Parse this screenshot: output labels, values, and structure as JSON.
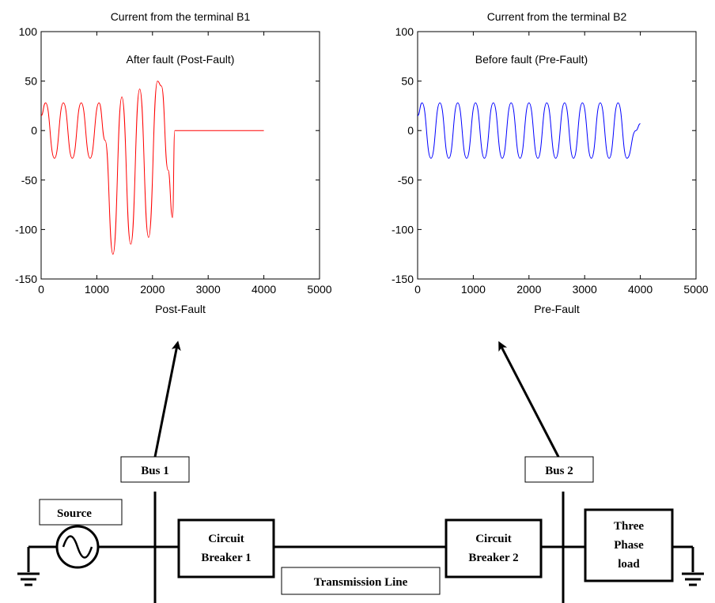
{
  "chart_data": [
    {
      "type": "line",
      "title": "Current from the terminal B1",
      "xlabel": "Post-Fault",
      "ylabel": "",
      "annotation": "After fault (Post-Fault)",
      "xlim": [
        0,
        5000
      ],
      "ylim": [
        -150,
        100
      ],
      "xticks": [
        "0",
        "1000",
        "2000",
        "3000",
        "4000",
        "5000"
      ],
      "yticks": [
        "100",
        "50",
        "0",
        "-50",
        "-100",
        "-150"
      ],
      "grid": false,
      "series": [
        {
          "color": "#ff0000",
          "x": [
            0,
            80,
            240,
            400,
            560,
            720,
            880,
            1040,
            1150,
            1290,
            1450,
            1610,
            1770,
            1930,
            2090,
            2160,
            2280,
            2360,
            2400,
            2500,
            3000,
            3500,
            4000
          ],
          "y": [
            15,
            28,
            -28,
            28,
            -28,
            28,
            -28,
            28,
            -10,
            -125,
            34,
            -115,
            42,
            -108,
            50,
            45,
            -40,
            -88,
            0,
            0,
            0,
            0,
            0
          ]
        }
      ]
    },
    {
      "type": "line",
      "title": "Current from the terminal B2",
      "xlabel": "Pre-Fault",
      "ylabel": "",
      "annotation": "Before fault (Pre-Fault)",
      "xlim": [
        0,
        5000
      ],
      "ylim": [
        -150,
        100
      ],
      "xticks": [
        "0",
        "1000",
        "2000",
        "3000",
        "4000",
        "5000"
      ],
      "yticks": [
        "100",
        "50",
        "0",
        "-50",
        "-100",
        "-150"
      ],
      "grid": false,
      "series": [
        {
          "color": "#0000ff",
          "x": [
            0,
            80,
            240,
            400,
            560,
            720,
            880,
            1040,
            1200,
            1360,
            1520,
            1680,
            1840,
            2000,
            2160,
            2320,
            2480,
            2640,
            2800,
            2960,
            3120,
            3280,
            3440,
            3600,
            3760,
            3920,
            4000
          ],
          "y": [
            15,
            28,
            -28,
            28,
            -28,
            28,
            -28,
            28,
            -28,
            28,
            -28,
            28,
            -28,
            28,
            -28,
            28,
            -28,
            28,
            -28,
            28,
            -28,
            28,
            -28,
            28,
            -28,
            0,
            7
          ]
        }
      ]
    }
  ],
  "diagram": {
    "bus1_label": "Bus 1",
    "bus2_label": "Bus 2",
    "source_label": "Source",
    "cb1_line1": "Circuit",
    "cb1_line2": "Breaker 1",
    "cb2_line1": "Circuit",
    "cb2_line2": "Breaker 2",
    "load_line1": "Three",
    "load_line2": "Phase",
    "load_line3": "load",
    "transmission_label": "Transmission Line"
  },
  "colors": {
    "post_fault_trace": "#ff0000",
    "pre_fault_trace": "#0000ff",
    "lines": "#000000"
  }
}
